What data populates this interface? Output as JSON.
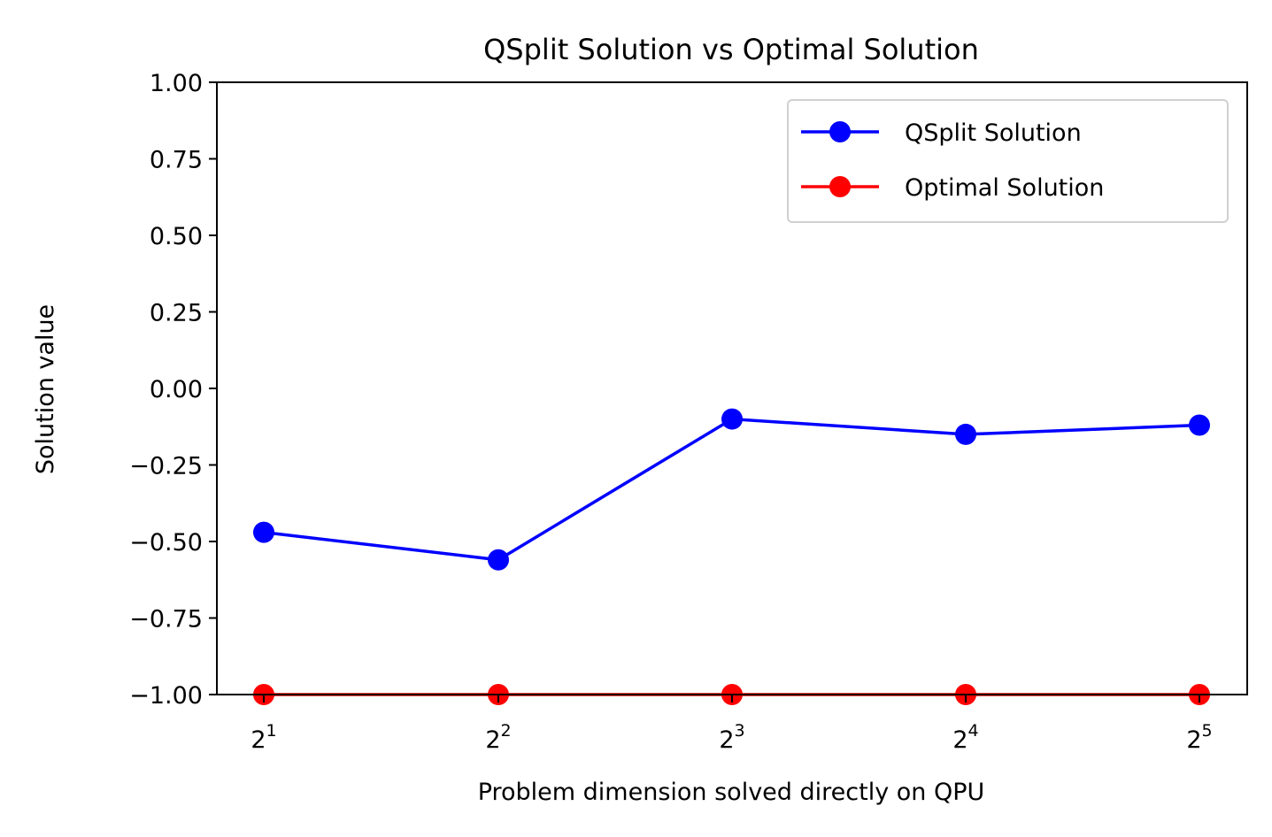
{
  "chart_data": {
    "type": "line",
    "title": "QSplit Solution vs Optimal Solution",
    "xlabel": "Problem dimension solved directly on QPU",
    "ylabel": "Solution value",
    "x": [
      2,
      4,
      8,
      16,
      32
    ],
    "x_tick_labels": [
      {
        "base": "2",
        "exp": "1"
      },
      {
        "base": "2",
        "exp": "2"
      },
      {
        "base": "2",
        "exp": "3"
      },
      {
        "base": "2",
        "exp": "4"
      },
      {
        "base": "2",
        "exp": "5"
      }
    ],
    "x_scale": "log2",
    "ylim": [
      -1.0,
      1.0
    ],
    "y_ticks": [
      1.0,
      0.75,
      0.5,
      0.25,
      0.0,
      -0.25,
      -0.5,
      -0.75,
      -1.0
    ],
    "y_tick_labels": [
      "1.00",
      "0.75",
      "0.50",
      "0.25",
      "0.00",
      "−0.25",
      "−0.50",
      "−0.75",
      "−1.00"
    ],
    "grid": false,
    "legend_position": "top-right",
    "series": [
      {
        "name": "QSplit Solution",
        "color": "#0000ff",
        "marker": "circle",
        "values": [
          -0.47,
          -0.56,
          -0.1,
          -0.15,
          -0.12
        ]
      },
      {
        "name": "Optimal Solution",
        "color": "#ff0000",
        "marker": "circle",
        "values": [
          -1.0,
          -1.0,
          -1.0,
          -1.0,
          -1.0
        ]
      }
    ]
  }
}
